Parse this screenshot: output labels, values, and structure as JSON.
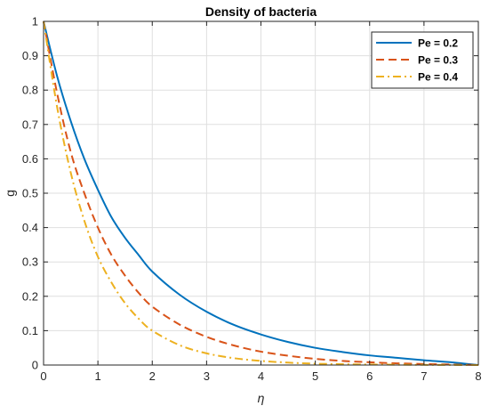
{
  "chart_data": {
    "type": "line",
    "title": "Density of bacteria",
    "xlabel": "η",
    "ylabel": "g",
    "xlim": [
      0,
      8
    ],
    "ylim": [
      0,
      1
    ],
    "xticks": [
      "0",
      "1",
      "2",
      "3",
      "4",
      "5",
      "6",
      "7",
      "8"
    ],
    "yticks": [
      "0",
      "0.1",
      "0.2",
      "0.3",
      "0.4",
      "0.5",
      "0.6",
      "0.7",
      "0.8",
      "0.9",
      "1"
    ],
    "grid": true,
    "legend_position": "top-right",
    "series": [
      {
        "name": "Pe = 0.2",
        "color": "#0072BD",
        "style": "solid",
        "x": [
          0,
          0.25,
          0.5,
          0.75,
          1,
          1.25,
          1.5,
          1.75,
          2,
          2.5,
          3,
          3.5,
          4,
          4.5,
          5,
          5.5,
          6,
          6.5,
          7,
          7.5,
          8
        ],
        "y": [
          1,
          0.84,
          0.71,
          0.6,
          0.51,
          0.43,
          0.37,
          0.32,
          0.272,
          0.205,
          0.155,
          0.117,
          0.089,
          0.067,
          0.05,
          0.038,
          0.028,
          0.021,
          0.014,
          0.008,
          0
        ]
      },
      {
        "name": "Pe = 0.3",
        "color": "#D95319",
        "style": "dashed",
        "x": [
          0,
          0.25,
          0.5,
          0.75,
          1,
          1.25,
          1.5,
          1.75,
          2,
          2.5,
          3,
          3.5,
          4,
          4.5,
          5,
          5.5,
          6,
          6.5,
          7,
          7.5,
          8
        ],
        "y": [
          1,
          0.79,
          0.62,
          0.5,
          0.4,
          0.32,
          0.26,
          0.21,
          0.17,
          0.118,
          0.082,
          0.057,
          0.039,
          0.027,
          0.018,
          0.012,
          0.008,
          0.005,
          0.003,
          0.0015,
          0
        ]
      },
      {
        "name": "Pe = 0.4",
        "color": "#EDB120",
        "style": "dashdot",
        "x": [
          0,
          0.25,
          0.5,
          0.75,
          1,
          1.25,
          1.5,
          1.75,
          2,
          2.5,
          3,
          3.5,
          4,
          4.5,
          5,
          5.5,
          6,
          6.5,
          7,
          7.5,
          8
        ],
        "y": [
          1,
          0.75,
          0.56,
          0.42,
          0.315,
          0.24,
          0.18,
          0.135,
          0.1,
          0.058,
          0.034,
          0.02,
          0.012,
          0.007,
          0.004,
          0.0025,
          0.0015,
          0.001,
          0.0005,
          0.0002,
          0
        ]
      }
    ]
  }
}
